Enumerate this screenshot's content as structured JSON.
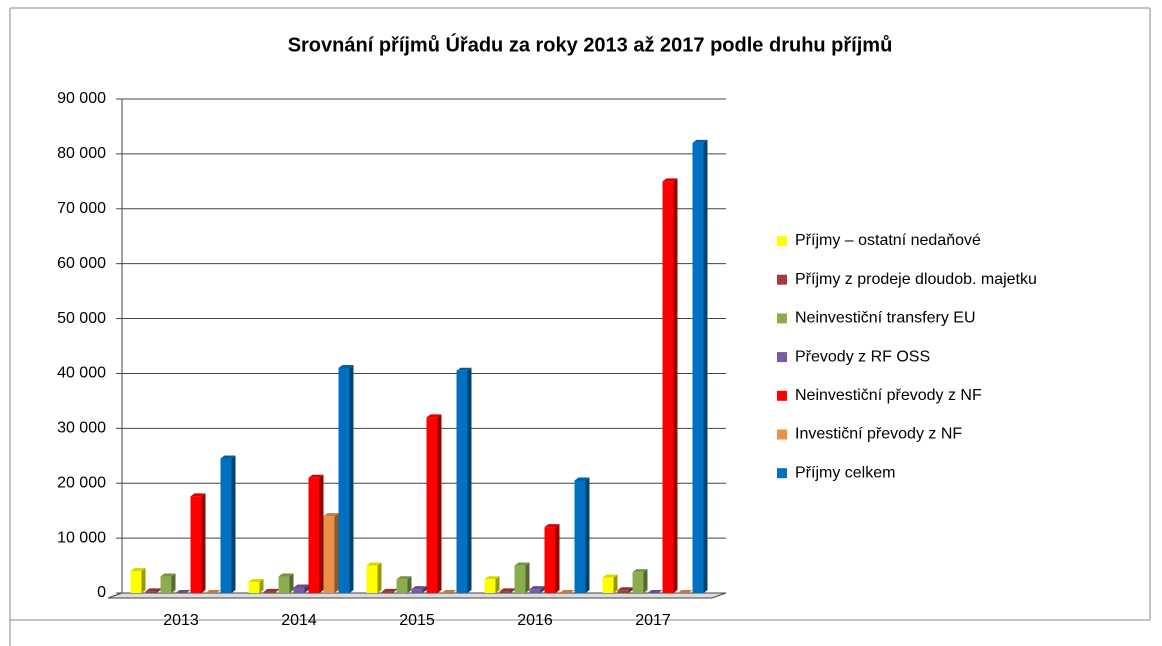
{
  "chart_data": {
    "type": "bar",
    "title": "Srovnání příjmů Úřadu za roky 2013 až 2017 podle druhu příjmů",
    "categories": [
      "2013",
      "2014",
      "2015",
      "2016",
      "2017"
    ],
    "series": [
      {
        "name": "Příjmy – ostatní nedaňové",
        "color": "#ffff00",
        "values": [
          4000,
          2000,
          5000,
          2500,
          2800
        ]
      },
      {
        "name": "Příjmy z prodeje dloudob. majetku",
        "color": "#a33c3c",
        "values": [
          300,
          200,
          200,
          300,
          500
        ]
      },
      {
        "name": "Neinvestiční transfery EU",
        "color": "#8cad4e",
        "values": [
          3000,
          3000,
          2500,
          5000,
          3800
        ]
      },
      {
        "name": "Převody z RF OSS",
        "color": "#7a5aa6",
        "values": [
          0,
          1000,
          700,
          700,
          0
        ]
      },
      {
        "name": "Neinvestiční převody z NF",
        "color": "#ff0000",
        "values": [
          17600,
          21000,
          32000,
          12000,
          75000
        ]
      },
      {
        "name": "Investiční převody z NF",
        "color": "#e9914a",
        "values": [
          0,
          14000,
          0,
          0,
          0
        ]
      },
      {
        "name": "Příjmy celkem",
        "color": "#0070c0",
        "values": [
          24500,
          41000,
          40500,
          20500,
          82000
        ]
      }
    ],
    "ylim": [
      0,
      90000
    ],
    "yticks": [
      0,
      {
        "value": 10000,
        "label": "10 000"
      },
      {
        "value": 20000,
        "label": "20 000"
      },
      {
        "value": 30000,
        "label": "30 000"
      },
      {
        "value": 40000,
        "label": "40 000"
      },
      {
        "value": 50000,
        "label": "50 000"
      },
      {
        "value": 60000,
        "label": "60 000"
      },
      {
        "value": 70000,
        "label": "70 000"
      },
      {
        "value": 80000,
        "label": "80 000"
      },
      {
        "value": 90000,
        "label": "90 000"
      }
    ],
    "grid": true
  }
}
